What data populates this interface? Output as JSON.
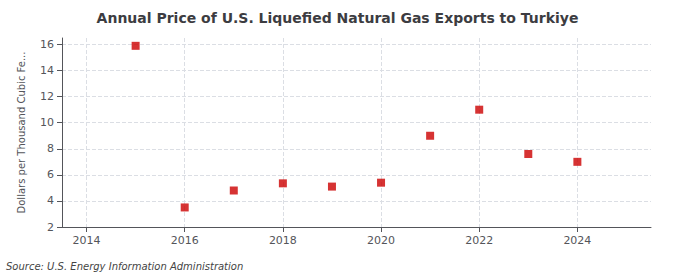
{
  "chart_data": {
    "type": "scatter",
    "title": "Annual Price of U.S. Liquefied Natural Gas Exports to Turkiye",
    "ylabel": "Dollars per Thousand Cubic Fe...",
    "annotation": "Source: U.S. Energy Information Administration",
    "x": [
      2015,
      2016,
      2017,
      2018,
      2019,
      2020,
      2021,
      2022,
      2023,
      2024
    ],
    "values": [
      15.9,
      3.5,
      4.8,
      5.35,
      5.1,
      5.4,
      9.0,
      11.0,
      7.6,
      7.0
    ],
    "color": "#cc0000",
    "marker": "square",
    "xlim": [
      2013.5,
      2025.5
    ],
    "ylim": [
      2,
      16.5
    ],
    "xticks": [
      2014,
      2016,
      2018,
      2020,
      2022,
      2024
    ],
    "yticks": [
      2,
      4,
      6,
      8,
      10,
      12,
      14,
      16
    ],
    "grid": true
  }
}
